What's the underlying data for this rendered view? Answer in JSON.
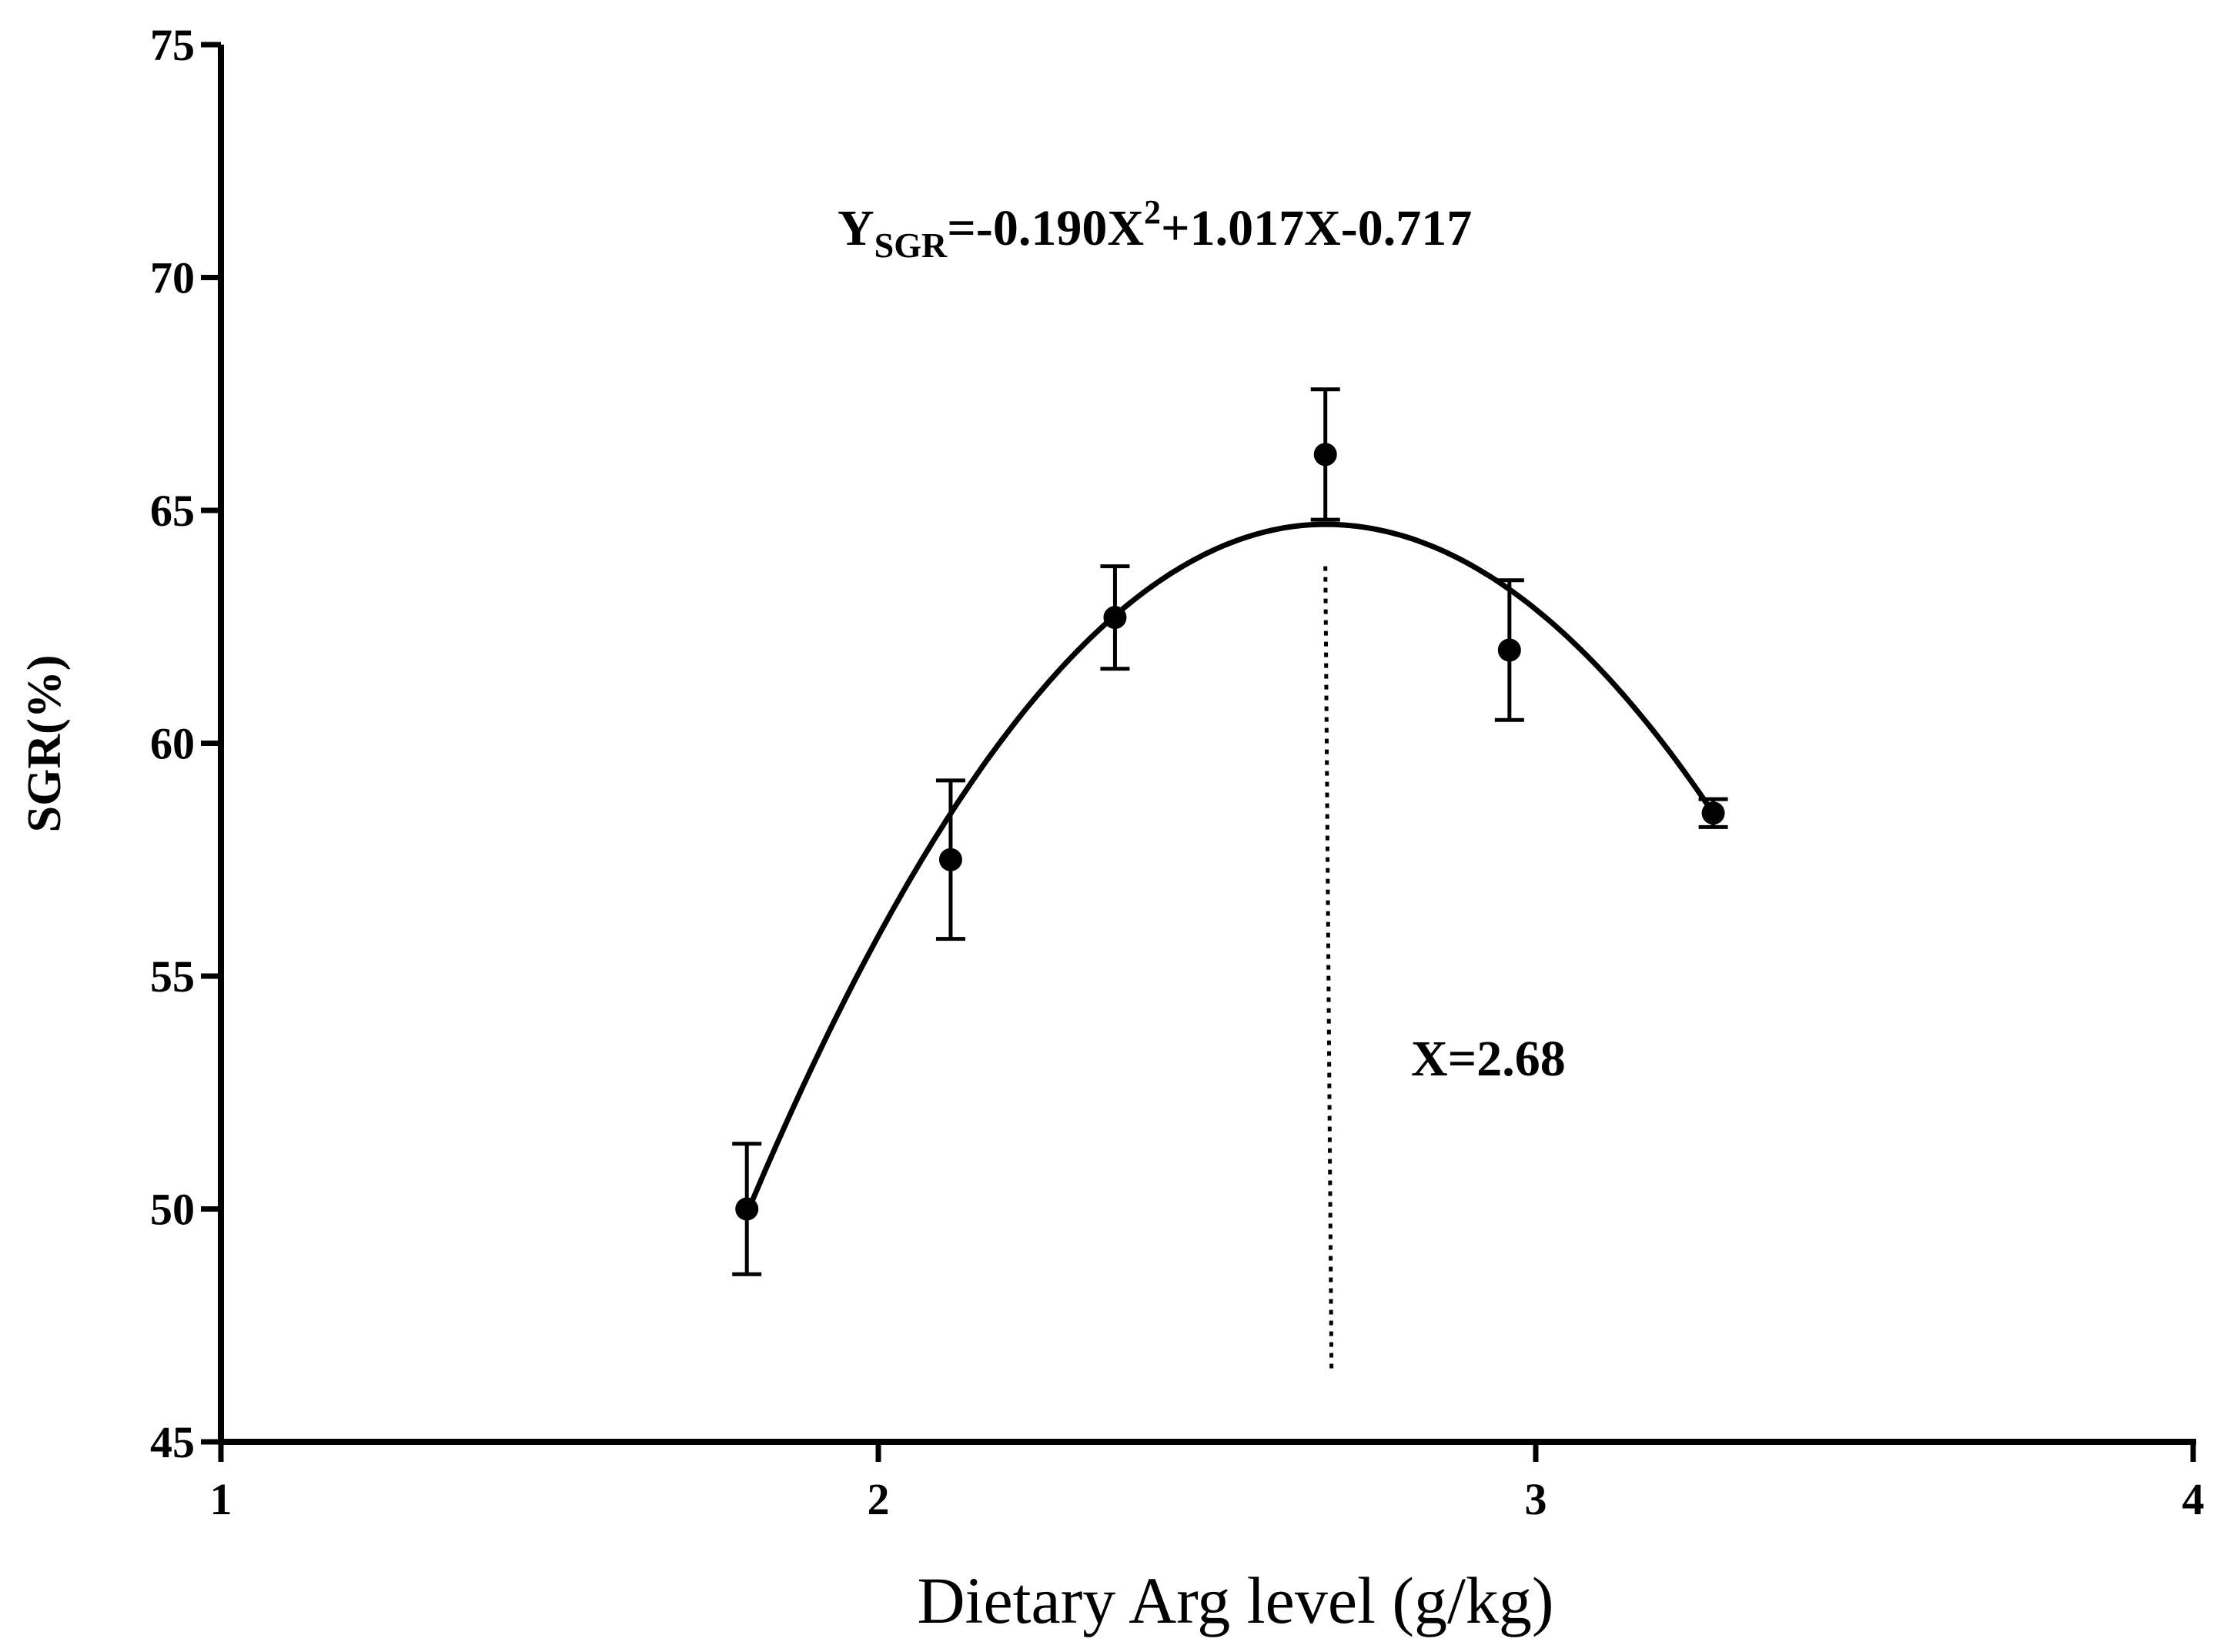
{
  "chart_data": {
    "type": "scatter",
    "title": "",
    "xlabel": "Dietary Arg level (g/kg)",
    "ylabel": "SGR(%)",
    "xlim": [
      1,
      4
    ],
    "ylim": [
      45,
      75
    ],
    "xticks": [
      "1",
      "2",
      "3",
      "4"
    ],
    "yticks": [
      "45",
      "50",
      "55",
      "60",
      "65",
      "70",
      "75"
    ],
    "grid": false,
    "legend": "none",
    "series": [
      {
        "x": [
          1.8,
          2.11,
          2.36,
          2.68,
          2.96,
          3.27
        ],
        "y": [
          50.0,
          57.5,
          62.7,
          66.2,
          62.0,
          58.5
        ],
        "error": [
          1.4,
          1.7,
          1.1,
          1.4,
          1.5,
          0.3
        ]
      }
    ],
    "fit_curve": {
      "type": "quadratic",
      "x_range": [
        1.8,
        3.27
      ],
      "vertex_x": 2.68,
      "vertex_y": 64.7,
      "left_y": 49.9,
      "right_y": 58.5
    },
    "equation": {
      "lhs": "Y",
      "subscript": "SGR",
      "part1": "=-0.190X",
      "superscript": "2",
      "part2": "+1.017X-0.717"
    },
    "optimum": {
      "x": 2.68,
      "y_from": 46.5,
      "y_to": 63.8,
      "label": "X=2.68"
    },
    "colors": {
      "marks": "#000000",
      "background": "#ffffff"
    }
  }
}
